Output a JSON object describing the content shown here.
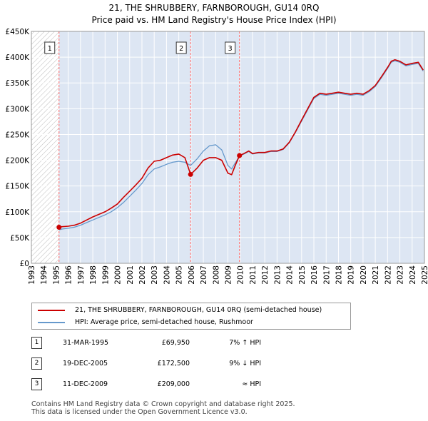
{
  "title_line1": "21, THE SHRUBBERY, FARNBOROUGH, GU14 0RQ",
  "title_line2": "Price paid vs. HM Land Registry's House Price Index (HPI)",
  "colors": {
    "property": "#cc0000",
    "hpi": "#6699cc",
    "marker": "#cc0000",
    "vline": "#ff6666",
    "shade": "#dde6f3"
  },
  "chart_data": {
    "type": "line",
    "title": "21, THE SHRUBBERY, FARNBOROUGH, GU14 0RQ - Price paid vs. HM Land Registry's House Price Index (HPI)",
    "xlabel": "",
    "ylabel": "",
    "xlim": [
      1993,
      2025
    ],
    "ylim": [
      0,
      450000
    ],
    "y_ticks": [
      0,
      50000,
      100000,
      150000,
      200000,
      250000,
      300000,
      350000,
      400000,
      450000
    ],
    "y_tick_labels": [
      "£0",
      "£50K",
      "£100K",
      "£150K",
      "£200K",
      "£250K",
      "£300K",
      "£350K",
      "£400K",
      "£450K"
    ],
    "x_ticks": [
      1993,
      1994,
      1995,
      1996,
      1997,
      1998,
      1999,
      2000,
      2001,
      2002,
      2003,
      2004,
      2005,
      2006,
      2007,
      2008,
      2009,
      2010,
      2011,
      2012,
      2013,
      2014,
      2015,
      2016,
      2017,
      2018,
      2019,
      2020,
      2021,
      2022,
      2023,
      2024,
      2025
    ],
    "x_tick_labels": [
      "1993",
      "1994",
      "1995",
      "1996",
      "1997",
      "1998",
      "1999",
      "2000",
      "2001",
      "2002",
      "2003",
      "2004",
      "2005",
      "2006",
      "2007",
      "2008",
      "2009",
      "2010",
      "2011",
      "2012",
      "2013",
      "2014",
      "2015",
      "2016",
      "2017",
      "2018",
      "2019",
      "2020",
      "2021",
      "2022",
      "2023",
      "2024",
      "2025"
    ],
    "grid": true,
    "hatched_region": [
      1993,
      1995.25
    ],
    "series": [
      {
        "name": "21, THE SHRUBBERY, FARNBOROUGH, GU14 0RQ (semi-detached house)",
        "x": [
          1995.25,
          1995.5,
          1996,
          1996.5,
          1997,
          1997.5,
          1998,
          1998.5,
          1999,
          1999.5,
          2000,
          2000.5,
          2001,
          2001.5,
          2002,
          2002.5,
          2003,
          2003.5,
          2004,
          2004.5,
          2005,
          2005.5,
          2005.96,
          2006.5,
          2007,
          2007.5,
          2008,
          2008.5,
          2009,
          2009.3,
          2009.6,
          2009.94,
          2010.3,
          2010.7,
          2011,
          2011.5,
          2012,
          2012.5,
          2013,
          2013.5,
          2014,
          2014.5,
          2015,
          2015.5,
          2016,
          2016.5,
          2017,
          2017.5,
          2018,
          2018.5,
          2019,
          2019.5,
          2020,
          2020.5,
          2021,
          2021.5,
          2022,
          2022.3,
          2022.6,
          2023,
          2023.5,
          2024,
          2024.5,
          2024.9
        ],
        "y": [
          69950,
          71000,
          72000,
          74000,
          78000,
          84000,
          90000,
          95000,
          100000,
          107000,
          115000,
          128000,
          140000,
          152000,
          165000,
          185000,
          198000,
          200000,
          205000,
          210000,
          212000,
          205000,
          172500,
          185000,
          200000,
          205000,
          205000,
          200000,
          175000,
          172000,
          190000,
          209000,
          213000,
          218000,
          213000,
          215000,
          215000,
          218000,
          218000,
          222000,
          235000,
          255000,
          278000,
          300000,
          322000,
          330000,
          328000,
          330000,
          332000,
          330000,
          328000,
          330000,
          328000,
          335000,
          345000,
          362000,
          380000,
          392000,
          395000,
          392000,
          385000,
          388000,
          390000,
          375000
        ]
      },
      {
        "name": "HPI: Average price, semi-detached house, Rushmoor",
        "x": [
          1995.25,
          1995.5,
          1996,
          1996.5,
          1997,
          1997.5,
          1998,
          1998.5,
          1999,
          1999.5,
          2000,
          2000.5,
          2001,
          2001.5,
          2002,
          2002.5,
          2003,
          2003.5,
          2004,
          2004.5,
          2005,
          2005.5,
          2005.96,
          2006.5,
          2007,
          2007.5,
          2008,
          2008.5,
          2009,
          2009.3,
          2009.6,
          2009.94,
          2010.3,
          2010.7,
          2011,
          2011.5,
          2012,
          2012.5,
          2013,
          2013.5,
          2014,
          2014.5,
          2015,
          2015.5,
          2016,
          2016.5,
          2017,
          2017.5,
          2018,
          2018.5,
          2019,
          2019.5,
          2020,
          2020.5,
          2021,
          2021.5,
          2022,
          2022.3,
          2022.6,
          2023,
          2023.5,
          2024,
          2024.5,
          2024.9
        ],
        "y": [
          65000,
          66500,
          68000,
          70000,
          74000,
          79000,
          84000,
          89000,
          94000,
          100000,
          108000,
          118000,
          130000,
          142000,
          155000,
          172000,
          183000,
          187000,
          192000,
          196000,
          198000,
          196000,
          190000,
          203000,
          218000,
          228000,
          230000,
          220000,
          190000,
          183000,
          195000,
          208000,
          212000,
          217000,
          212000,
          214000,
          214000,
          217000,
          217000,
          221000,
          234000,
          254000,
          276000,
          298000,
          320000,
          328000,
          326000,
          328000,
          330000,
          328000,
          326000,
          328000,
          326000,
          333000,
          343000,
          360000,
          378000,
          390000,
          393000,
          390000,
          383000,
          386000,
          388000,
          373000
        ]
      }
    ],
    "sales": [
      {
        "label": "1",
        "x": 1995.25,
        "y": 69950
      },
      {
        "label": "2",
        "x": 2005.96,
        "y": 172500
      },
      {
        "label": "3",
        "x": 2009.94,
        "y": 209000
      }
    ]
  },
  "legend": {
    "property_label": "21, THE SHRUBBERY, FARNBOROUGH, GU14 0RQ (semi-detached house)",
    "hpi_label": "HPI: Average price, semi-detached house, Rushmoor"
  },
  "sales_table": [
    {
      "num": "1",
      "date": "31-MAR-1995",
      "price": "£69,950",
      "hpi": "7% ↑ HPI"
    },
    {
      "num": "2",
      "date": "19-DEC-2005",
      "price": "£172,500",
      "hpi": "9% ↓ HPI"
    },
    {
      "num": "3",
      "date": "11-DEC-2009",
      "price": "£209,000",
      "hpi": "≈ HPI"
    }
  ],
  "footer_line1": "Contains HM Land Registry data © Crown copyright and database right 2025.",
  "footer_line2": "This data is licensed under the Open Government Licence v3.0."
}
